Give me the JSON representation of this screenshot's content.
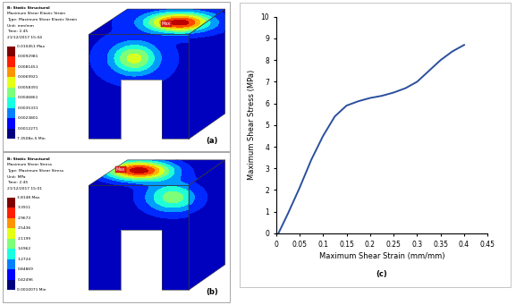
{
  "panels": [
    {
      "label": "(a)",
      "header": [
        "B: Static Structural",
        "Maximum Shear Elastic Strain",
        "Type: Maximum Shear Elastic Strain",
        "Unit: mm/mm",
        "Time: 2.45",
        "21/12/2017 15:04"
      ],
      "legend_labels": [
        "0.010451 Max",
        "0.0092981",
        "0.0081451",
        "0.0069921",
        "0.0058391",
        "0.0046861",
        "0.0035331",
        "0.0023801",
        "0.0012271",
        "7.3508e-5 Min"
      ],
      "probe": "Max"
    },
    {
      "label": "(b)",
      "header": [
        "B: Static Structural",
        "Maximum Shear Stress",
        "Type: Maximum Shear Stress",
        "Unit: MPa",
        "Time: 2.45",
        "21/12/2017 15:01"
      ],
      "legend_labels": [
        "3.8148 Max",
        "3.3911",
        "2.9673",
        "2.5436",
        "2.1199",
        "1.6962",
        "1.2724",
        "0.84869",
        "0.42496",
        "0.0010071 Min"
      ],
      "probe": "Max"
    }
  ],
  "chart_data": {
    "type": "line",
    "annotations": [
      "(c)"
    ],
    "x": [
      0.005,
      0.025,
      0.05,
      0.075,
      0.1,
      0.125,
      0.15,
      0.175,
      0.2,
      0.225,
      0.25,
      0.275,
      0.3,
      0.325,
      0.35,
      0.375,
      0.4
    ],
    "values": [
      0,
      0.9,
      2.1,
      3.4,
      4.5,
      5.4,
      5.9,
      6.1,
      6.25,
      6.35,
      6.5,
      6.7,
      7.0,
      7.5,
      8.0,
      8.4,
      8.7
    ],
    "color": "#2b4f9e",
    "xlabel": "Maximum Shear Strain (mm/mm)",
    "ylabel": "Maximum Shear Stress (MPa)",
    "xlim": [
      0,
      0.45
    ],
    "xticks": [
      0,
      0.05,
      0.1,
      0.15,
      0.2,
      0.25,
      0.3,
      0.35,
      0.4,
      0.45
    ],
    "ylim": [
      0,
      10
    ],
    "yticks": [
      0,
      1,
      2,
      3,
      4,
      5,
      6,
      7,
      8,
      9,
      10
    ],
    "grid": false
  }
}
